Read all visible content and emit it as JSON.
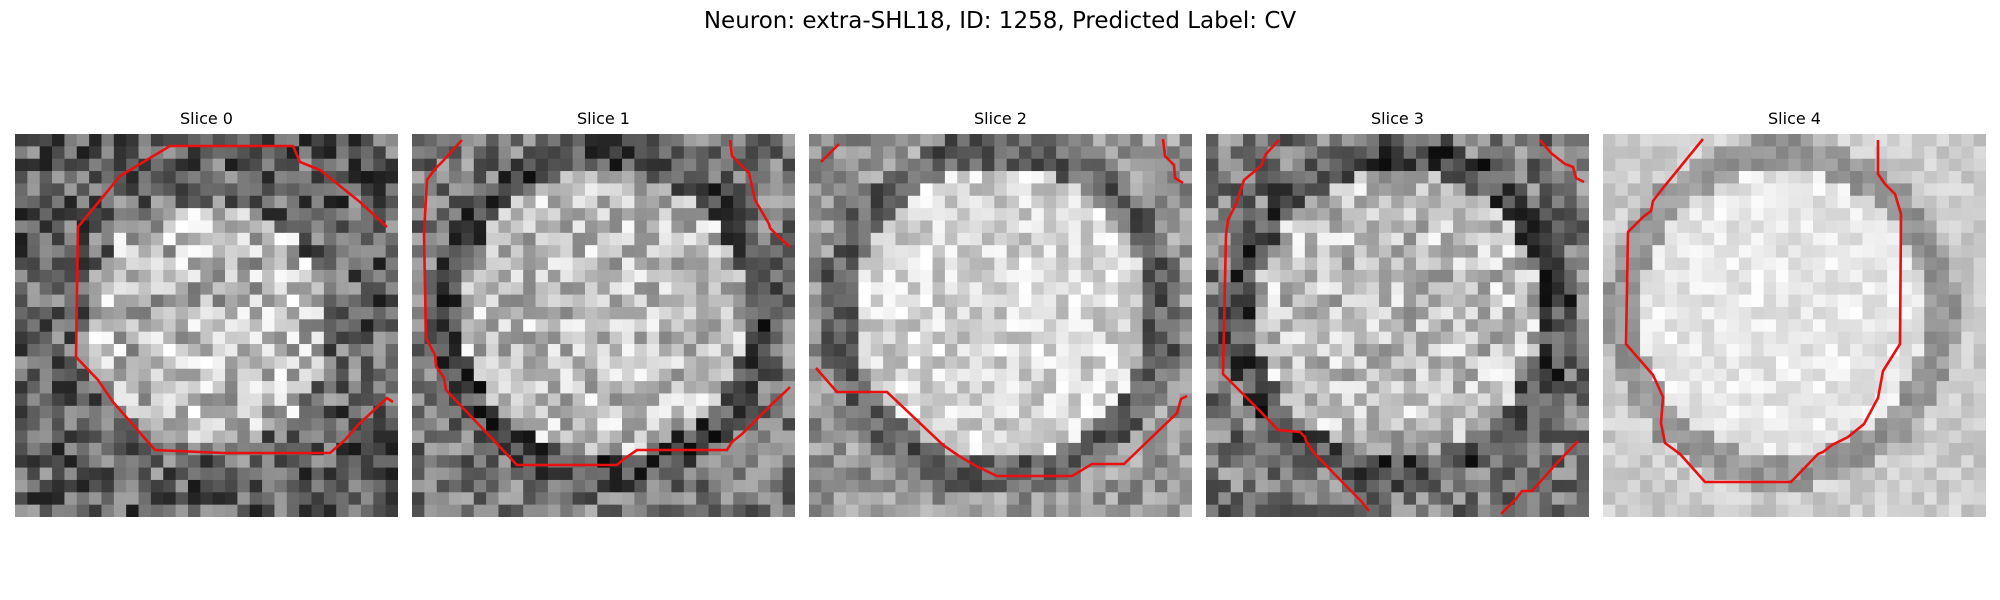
{
  "figure": {
    "title": "Neuron: extra-SHL18, ID: 1258, Predicted Label: CV"
  },
  "panels": [
    {
      "title": "Slice 0",
      "style": "dark",
      "seed": 11
    },
    {
      "title": "Slice 1",
      "style": "ringed",
      "seed": 23
    },
    {
      "title": "Slice 2",
      "style": "light",
      "seed": 37
    },
    {
      "title": "Slice 3",
      "style": "ringed",
      "seed": 41
    },
    {
      "title": "Slice 4",
      "style": "bright",
      "seed": 59
    }
  ],
  "contour_color": "#e81010"
}
